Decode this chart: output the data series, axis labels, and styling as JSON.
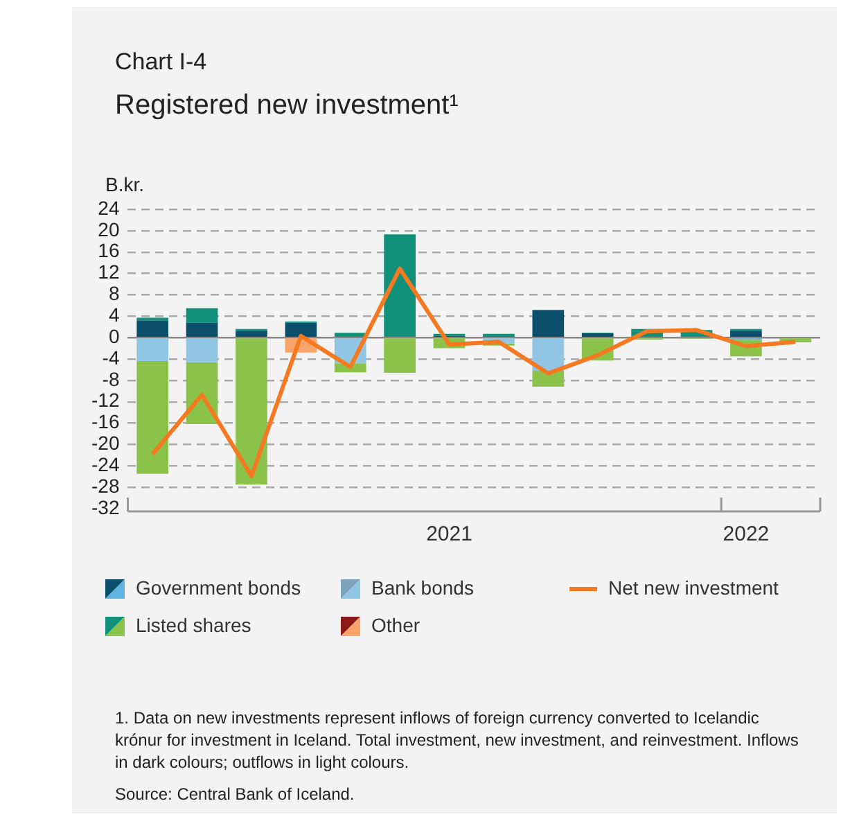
{
  "chart_data": {
    "type": "bar",
    "title": "Chart I-4",
    "subtitle": "Registered new investment¹",
    "ylabel": "B.kr.",
    "categories": [
      null,
      null,
      null,
      null,
      null,
      null,
      "2021",
      null,
      null,
      null,
      null,
      null,
      "2022",
      null
    ],
    "ylim": [
      -32,
      24
    ],
    "yticks": [
      -32,
      -28,
      -24,
      -20,
      -16,
      -12,
      -8,
      -4,
      0,
      4,
      8,
      12,
      16,
      20,
      24
    ],
    "stacked": true,
    "grid": "y",
    "legend": "bottom",
    "line_style": "solid",
    "marker": "none",
    "series": [
      {
        "name": "Government bonds",
        "color": "#0b4f6c",
        "values": [
          3.2,
          2.8,
          1.2,
          2.8,
          null,
          null,
          0.3,
          null,
          5.1,
          0.8,
          null,
          null,
          1.2,
          null
        ]
      },
      {
        "color": "#5fb3de",
        "values": [
          null,
          null,
          null,
          null,
          null,
          null,
          null,
          null,
          null,
          null,
          null,
          null,
          -0.4,
          null
        ]
      },
      {
        "name": "Bank bonds",
        "color": "#7fa3bd",
        "values": [
          null,
          null,
          null,
          null,
          null,
          null,
          null,
          null,
          null,
          null,
          null,
          null,
          null,
          null
        ]
      },
      {
        "color": "#90c6e3",
        "values": [
          -4.4,
          -4.6,
          null,
          null,
          -4.8,
          null,
          null,
          -1.1,
          -6.2,
          null,
          null,
          null,
          null,
          null
        ]
      },
      {
        "name": "Listed shares",
        "color": "#11917a",
        "values": [
          0.5,
          2.7,
          0.4,
          0.2,
          0.9,
          19.3,
          0.4,
          0.7,
          0.1,
          0.1,
          1.6,
          1.4,
          0.4,
          null
        ]
      },
      {
        "color": "#8bc34a",
        "values": [
          -21.1,
          -11.6,
          -27.5,
          null,
          -1.7,
          -6.6,
          -2.0,
          -0.4,
          -3.0,
          -4.3,
          -0.4,
          -0.2,
          -3.1,
          -0.9
        ]
      },
      {
        "name": "Other",
        "color": "#8b1a1a",
        "values": [
          null,
          null,
          null,
          null,
          null,
          null,
          null,
          null,
          null,
          null,
          null,
          null,
          null,
          null
        ]
      },
      {
        "color": "#f9a46b",
        "values": [
          null,
          null,
          null,
          -2.8,
          null,
          null,
          null,
          null,
          null,
          null,
          null,
          null,
          null,
          null
        ]
      },
      {
        "name": "Net new investment",
        "type": "line",
        "color": "#f47920",
        "values": [
          -21.8,
          -10.7,
          -25.9,
          0.3,
          -5.5,
          12.9,
          -1.3,
          -0.8,
          -6.7,
          -3.3,
          1.2,
          1.4,
          -1.6,
          -0.8
        ]
      }
    ],
    "annotations": [
      "1. Data on new investments represent inflows of foreign currency converted to Icelandic krónur for investment in Iceland. Total investment, new investment, and reinvestment. Inflows in dark colours; outflows in light colours.",
      "$^{}$Source: Central Bank of Iceland."
    ]
  }
}
